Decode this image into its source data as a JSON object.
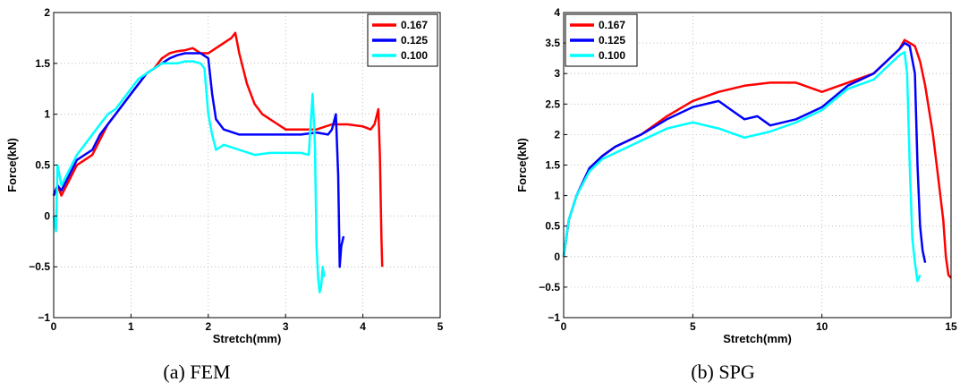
{
  "chart_data": [
    {
      "type": "line",
      "caption": "(a) FEM",
      "xlabel": "Stretch(mm)",
      "ylabel": "Force(kN)",
      "xlim": [
        0,
        5
      ],
      "ylim": [
        -1,
        2
      ],
      "xticks": [
        0,
        1,
        2,
        3,
        4,
        5
      ],
      "yticks": [
        -1,
        -0.5,
        0,
        0.5,
        1,
        1.5,
        2
      ],
      "xtick_labels": [
        "0",
        "1",
        "2",
        "3",
        "4",
        "5"
      ],
      "ytick_labels": [
        "−1",
        "−0.5",
        "0",
        "0.5",
        "1",
        "1.5",
        "2"
      ],
      "grid": true,
      "legend_position": "top-right",
      "series": [
        {
          "name": "0.167",
          "color": "#ff0000",
          "x": [
            0,
            0.05,
            0.1,
            0.2,
            0.3,
            0.4,
            0.5,
            0.6,
            0.7,
            0.8,
            0.9,
            1.0,
            1.1,
            1.2,
            1.3,
            1.4,
            1.5,
            1.6,
            1.7,
            1.8,
            1.9,
            2.0,
            2.1,
            2.2,
            2.3,
            2.35,
            2.4,
            2.5,
            2.6,
            2.7,
            2.8,
            2.9,
            3.0,
            3.2,
            3.4,
            3.6,
            3.8,
            4.0,
            4.1,
            4.15,
            4.2,
            4.22,
            4.24,
            4.25
          ],
          "y": [
            0.2,
            0.3,
            0.2,
            0.35,
            0.5,
            0.55,
            0.6,
            0.75,
            0.9,
            1.0,
            1.1,
            1.2,
            1.3,
            1.4,
            1.45,
            1.55,
            1.6,
            1.62,
            1.63,
            1.65,
            1.6,
            1.6,
            1.65,
            1.7,
            1.75,
            1.8,
            1.6,
            1.3,
            1.1,
            1.0,
            0.95,
            0.9,
            0.85,
            0.85,
            0.85,
            0.9,
            0.9,
            0.88,
            0.85,
            0.9,
            1.05,
            0.6,
            -0.2,
            -0.5
          ]
        },
        {
          "name": "0.125",
          "color": "#0000ff",
          "x": [
            0,
            0.05,
            0.1,
            0.2,
            0.3,
            0.4,
            0.5,
            0.6,
            0.7,
            0.8,
            0.9,
            1.0,
            1.1,
            1.2,
            1.3,
            1.4,
            1.5,
            1.6,
            1.7,
            1.8,
            1.9,
            2.0,
            2.05,
            2.1,
            2.2,
            2.4,
            2.6,
            2.8,
            3.0,
            3.2,
            3.4,
            3.55,
            3.6,
            3.65,
            3.68,
            3.7,
            3.72,
            3.75
          ],
          "y": [
            0.2,
            0.3,
            0.25,
            0.4,
            0.55,
            0.6,
            0.65,
            0.8,
            0.9,
            1.0,
            1.1,
            1.2,
            1.3,
            1.4,
            1.45,
            1.5,
            1.55,
            1.58,
            1.6,
            1.6,
            1.6,
            1.55,
            1.2,
            0.95,
            0.85,
            0.8,
            0.8,
            0.8,
            0.8,
            0.8,
            0.82,
            0.8,
            0.85,
            1.0,
            0.4,
            -0.5,
            -0.3,
            -0.2
          ]
        },
        {
          "name": "0.100",
          "color": "#00ffff",
          "x": [
            0,
            0.03,
            0.05,
            0.1,
            0.2,
            0.3,
            0.4,
            0.5,
            0.6,
            0.7,
            0.8,
            0.9,
            1.0,
            1.1,
            1.2,
            1.3,
            1.4,
            1.5,
            1.6,
            1.7,
            1.8,
            1.9,
            1.95,
            2.0,
            2.05,
            2.1,
            2.2,
            2.4,
            2.6,
            2.8,
            3.0,
            3.2,
            3.3,
            3.35,
            3.38,
            3.4,
            3.42,
            3.44,
            3.46,
            3.48,
            3.5
          ],
          "y": [
            0.0,
            -0.15,
            0.5,
            0.3,
            0.45,
            0.6,
            0.7,
            0.8,
            0.9,
            1.0,
            1.05,
            1.15,
            1.25,
            1.35,
            1.4,
            1.45,
            1.5,
            1.5,
            1.5,
            1.52,
            1.52,
            1.5,
            1.45,
            1.0,
            0.8,
            0.65,
            0.7,
            0.65,
            0.6,
            0.62,
            0.62,
            0.62,
            0.6,
            1.2,
            0.7,
            -0.3,
            -0.6,
            -0.75,
            -0.7,
            -0.5,
            -0.6
          ]
        }
      ]
    },
    {
      "type": "line",
      "caption": "(b) SPG",
      "xlabel": "Stretch(mm)",
      "ylabel": "Force(kN)",
      "xlim": [
        0,
        15
      ],
      "ylim": [
        -1,
        4
      ],
      "xticks": [
        0,
        5,
        10,
        15
      ],
      "yticks": [
        -1,
        -0.5,
        0,
        0.5,
        1,
        1.5,
        2,
        2.5,
        3,
        3.5,
        4
      ],
      "xtick_labels": [
        "0",
        "5",
        "10",
        "15"
      ],
      "ytick_labels": [
        "−1",
        "−0.5",
        "0",
        "0.5",
        "1",
        "1.5",
        "2",
        "2.5",
        "3",
        "3.5",
        "4"
      ],
      "grid": true,
      "legend_position": "top-left",
      "series": [
        {
          "name": "0.167",
          "color": "#ff0000",
          "x": [
            0,
            0.2,
            0.5,
            1,
            1.5,
            2,
            3,
            4,
            5,
            6,
            7,
            8,
            9,
            10,
            11,
            12,
            12.5,
            13,
            13.2,
            13.4,
            13.6,
            13.8,
            14.0,
            14.3,
            14.5,
            14.7,
            14.8,
            14.9,
            15.0
          ],
          "y": [
            0,
            0.6,
            1.0,
            1.45,
            1.65,
            1.8,
            2.0,
            2.3,
            2.55,
            2.7,
            2.8,
            2.85,
            2.85,
            2.7,
            2.85,
            3.0,
            3.2,
            3.4,
            3.55,
            3.5,
            3.45,
            3.2,
            2.8,
            2.0,
            1.3,
            0.6,
            0.0,
            -0.3,
            -0.35
          ]
        },
        {
          "name": "0.125",
          "color": "#0000ff",
          "x": [
            0,
            0.2,
            0.5,
            1,
            1.5,
            2,
            3,
            4,
            5,
            6,
            6.5,
            7,
            7.5,
            8,
            9,
            10,
            11,
            12,
            12.5,
            13,
            13.2,
            13.4,
            13.6,
            13.7,
            13.8,
            13.9,
            14.0
          ],
          "y": [
            0,
            0.6,
            1.0,
            1.45,
            1.65,
            1.8,
            2.0,
            2.25,
            2.45,
            2.55,
            2.4,
            2.25,
            2.3,
            2.15,
            2.25,
            2.45,
            2.8,
            3.0,
            3.2,
            3.4,
            3.5,
            3.45,
            3.0,
            1.5,
            0.5,
            0.1,
            -0.1
          ]
        },
        {
          "name": "0.100",
          "color": "#00ffff",
          "x": [
            0,
            0.2,
            0.5,
            1,
            1.5,
            2,
            3,
            4,
            5,
            6,
            7,
            8,
            9,
            10,
            11,
            12,
            12.5,
            13,
            13.2,
            13.3,
            13.4,
            13.5,
            13.6,
            13.7,
            13.8
          ],
          "y": [
            0,
            0.6,
            1.0,
            1.4,
            1.6,
            1.7,
            1.9,
            2.1,
            2.2,
            2.1,
            1.95,
            2.05,
            2.2,
            2.4,
            2.75,
            2.9,
            3.1,
            3.3,
            3.35,
            3.0,
            1.5,
            0.3,
            -0.1,
            -0.4,
            -0.3
          ]
        }
      ]
    }
  ]
}
